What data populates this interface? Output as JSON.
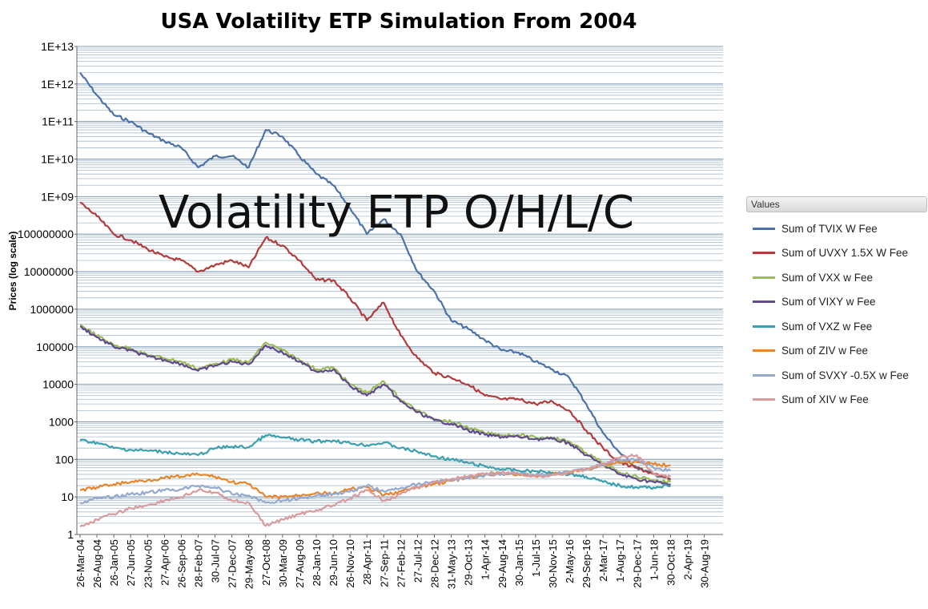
{
  "chart_data": {
    "type": "line",
    "title": "USA Volatility ETP Simulation From 2004",
    "watermark": "Volatility ETP O/H/L/C",
    "ylabel": "Prices (log scale)",
    "yscale": "log",
    "ylim": [
      1,
      10000000000000
    ],
    "yticks": [
      "1",
      "10",
      "100",
      "1000",
      "10000",
      "100000",
      "1000000",
      "10000000",
      "100000000",
      "1E+09",
      "1E+10",
      "1E+11",
      "1E+12",
      "1E+13"
    ],
    "xticks": [
      "26-Mar-04",
      "26-Aug-04",
      "26-Jan-05",
      "27-Jun-05",
      "23-Nov-05",
      "27-Apr-06",
      "26-Sep-06",
      "28-Feb-07",
      "30-Jul-07",
      "27-Dec-07",
      "29-May-08",
      "27-Oct-08",
      "30-Mar-09",
      "27-Aug-09",
      "28-Jan-10",
      "29-Jun-10",
      "26-Nov-10",
      "28-Apr-11",
      "27-Sep-11",
      "27-Feb-12",
      "27-Jul-12",
      "28-Dec-12",
      "31-May-13",
      "29-Oct-13",
      "1-Apr-14",
      "29-Aug-14",
      "30-Jan-15",
      "1-Jul-15",
      "30-Nov-15",
      "2-May-16",
      "29-Sep-16",
      "2-Mar-17",
      "1-Aug-17",
      "29-Dec-17",
      "1-Jun-18",
      "30-Oct-18",
      "2-Apr-19",
      "30-Aug-19"
    ],
    "grid": true,
    "legend": {
      "title": "Values",
      "placement": "right"
    },
    "x": [
      "26-Mar-04",
      "26-Aug-04",
      "26-Jan-05",
      "27-Jun-05",
      "23-Nov-05",
      "27-Apr-06",
      "26-Sep-06",
      "28-Feb-07",
      "30-Jul-07",
      "27-Dec-07",
      "29-May-08",
      "27-Oct-08",
      "30-Mar-09",
      "27-Aug-09",
      "28-Jan-10",
      "29-Jun-10",
      "26-Nov-10",
      "28-Apr-11",
      "27-Sep-11",
      "27-Feb-12",
      "27-Jul-12",
      "28-Dec-12",
      "31-May-13",
      "29-Oct-13",
      "1-Apr-14",
      "29-Aug-14",
      "30-Jan-15",
      "1-Jul-15",
      "30-Nov-15",
      "2-May-16",
      "29-Sep-16",
      "2-Mar-17",
      "1-Aug-17",
      "29-Dec-17",
      "1-Jun-18",
      "30-Oct-18"
    ],
    "series": [
      {
        "name": "Sum of TVIX W Fee",
        "color": "#4a72a8",
        "values": [
          2000000000000.0,
          500000000000.0,
          150000000000.0,
          100000000000.0,
          50000000000.0,
          30000000000.0,
          20000000000.0,
          6000000000.0,
          12000000000.0,
          12000000000.0,
          6000000000.0,
          60000000000.0,
          40000000000.0,
          12000000000.0,
          4000000000.0,
          2000000000.0,
          500000000.0,
          100000000.0,
          250000000.0,
          100000000.0,
          10000000.0,
          3000000.0,
          500000.0,
          300000.0,
          150000.0,
          80000.0,
          70000.0,
          40000.0,
          25000.0,
          15000.0,
          3000.0,
          500,
          150,
          60,
          40,
          30
        ]
      },
      {
        "name": "Sum of UVXY 1.5X W Fee",
        "color": "#b23b3b",
        "values": [
          700000000.0,
          300000000.0,
          100000000.0,
          70000000.0,
          40000000.0,
          25000000.0,
          20000000.0,
          10000000.0,
          15000000.0,
          20000000.0,
          13000000.0,
          80000000.0,
          50000000.0,
          20000000.0,
          6000000.0,
          6000000.0,
          2000000.0,
          500000.0,
          1500000.0,
          200000.0,
          50000.0,
          20000.0,
          15000.0,
          10000.0,
          5000.0,
          4000.0,
          4000.0,
          3000.0,
          3500.0,
          2000.0,
          600,
          200,
          80,
          60,
          40,
          30
        ]
      },
      {
        "name": "Sum of VXX w Fee",
        "color": "#9bbb59",
        "values": [
          380000.0,
          200000.0,
          110000.0,
          90000.0,
          60000.0,
          50000.0,
          40000.0,
          26000.0,
          35000.0,
          45000.0,
          38000.0,
          130000.0,
          80000.0,
          45000.0,
          25000.0,
          28000.0,
          10000.0,
          6000.0,
          12000.0,
          4000.0,
          2000.0,
          1200.0,
          1000.0,
          700,
          500,
          450,
          450,
          380,
          380,
          300,
          150,
          80,
          45,
          35,
          28,
          25
        ]
      },
      {
        "name": "Sum of VIXY w Fee",
        "color": "#614a8c",
        "values": [
          350000.0,
          180000.0,
          100000.0,
          80000.0,
          55000.0,
          45000.0,
          35000.0,
          23000.0,
          32000.0,
          40000.0,
          34000.0,
          110000.0,
          70000.0,
          40000.0,
          22000.0,
          25000.0,
          9000.0,
          5000.0,
          10000.0,
          3500.0,
          1800.0,
          1100.0,
          900,
          600,
          450,
          400,
          400,
          350,
          350,
          270,
          130,
          70,
          40,
          30,
          25,
          22
        ]
      },
      {
        "name": "Sum of VXZ w Fee",
        "color": "#3a9fae",
        "values": [
          320,
          280,
          200,
          180,
          170,
          160,
          140,
          130,
          200,
          220,
          210,
          440,
          380,
          330,
          300,
          320,
          270,
          240,
          280,
          200,
          160,
          120,
          100,
          80,
          65,
          55,
          50,
          48,
          45,
          40,
          35,
          25,
          20,
          18,
          18,
          20
        ]
      },
      {
        "name": "Sum of ZIV w Fee",
        "color": "#e8852b",
        "values": [
          15,
          18,
          22,
          25,
          28,
          32,
          35,
          40,
          35,
          25,
          22,
          10,
          10,
          11,
          13,
          12,
          16,
          18,
          11,
          14,
          18,
          22,
          27,
          32,
          38,
          42,
          40,
          35,
          40,
          45,
          55,
          70,
          85,
          85,
          75,
          70
        ]
      },
      {
        "name": "Sum of SVXY -0.5X w Fee",
        "color": "#93a9cf",
        "values": [
          7,
          9,
          10,
          12,
          13,
          15,
          16,
          20,
          18,
          12,
          11,
          7,
          8,
          9,
          11,
          12,
          14,
          20,
          14,
          17,
          22,
          26,
          28,
          32,
          38,
          42,
          42,
          38,
          40,
          46,
          58,
          72,
          95,
          100,
          60,
          50
        ]
      },
      {
        "name": "Sum of XIV w Fee",
        "color": "#d89a9c",
        "values": [
          1.6,
          2.5,
          3.5,
          5,
          6,
          8,
          10,
          15,
          13,
          8,
          7,
          1.7,
          2.5,
          3.5,
          4.5,
          6,
          9,
          15,
          8,
          12,
          18,
          25,
          30,
          35,
          40,
          45,
          42,
          35,
          38,
          45,
          55,
          75,
          110,
          130,
          40,
          35
        ]
      }
    ]
  }
}
